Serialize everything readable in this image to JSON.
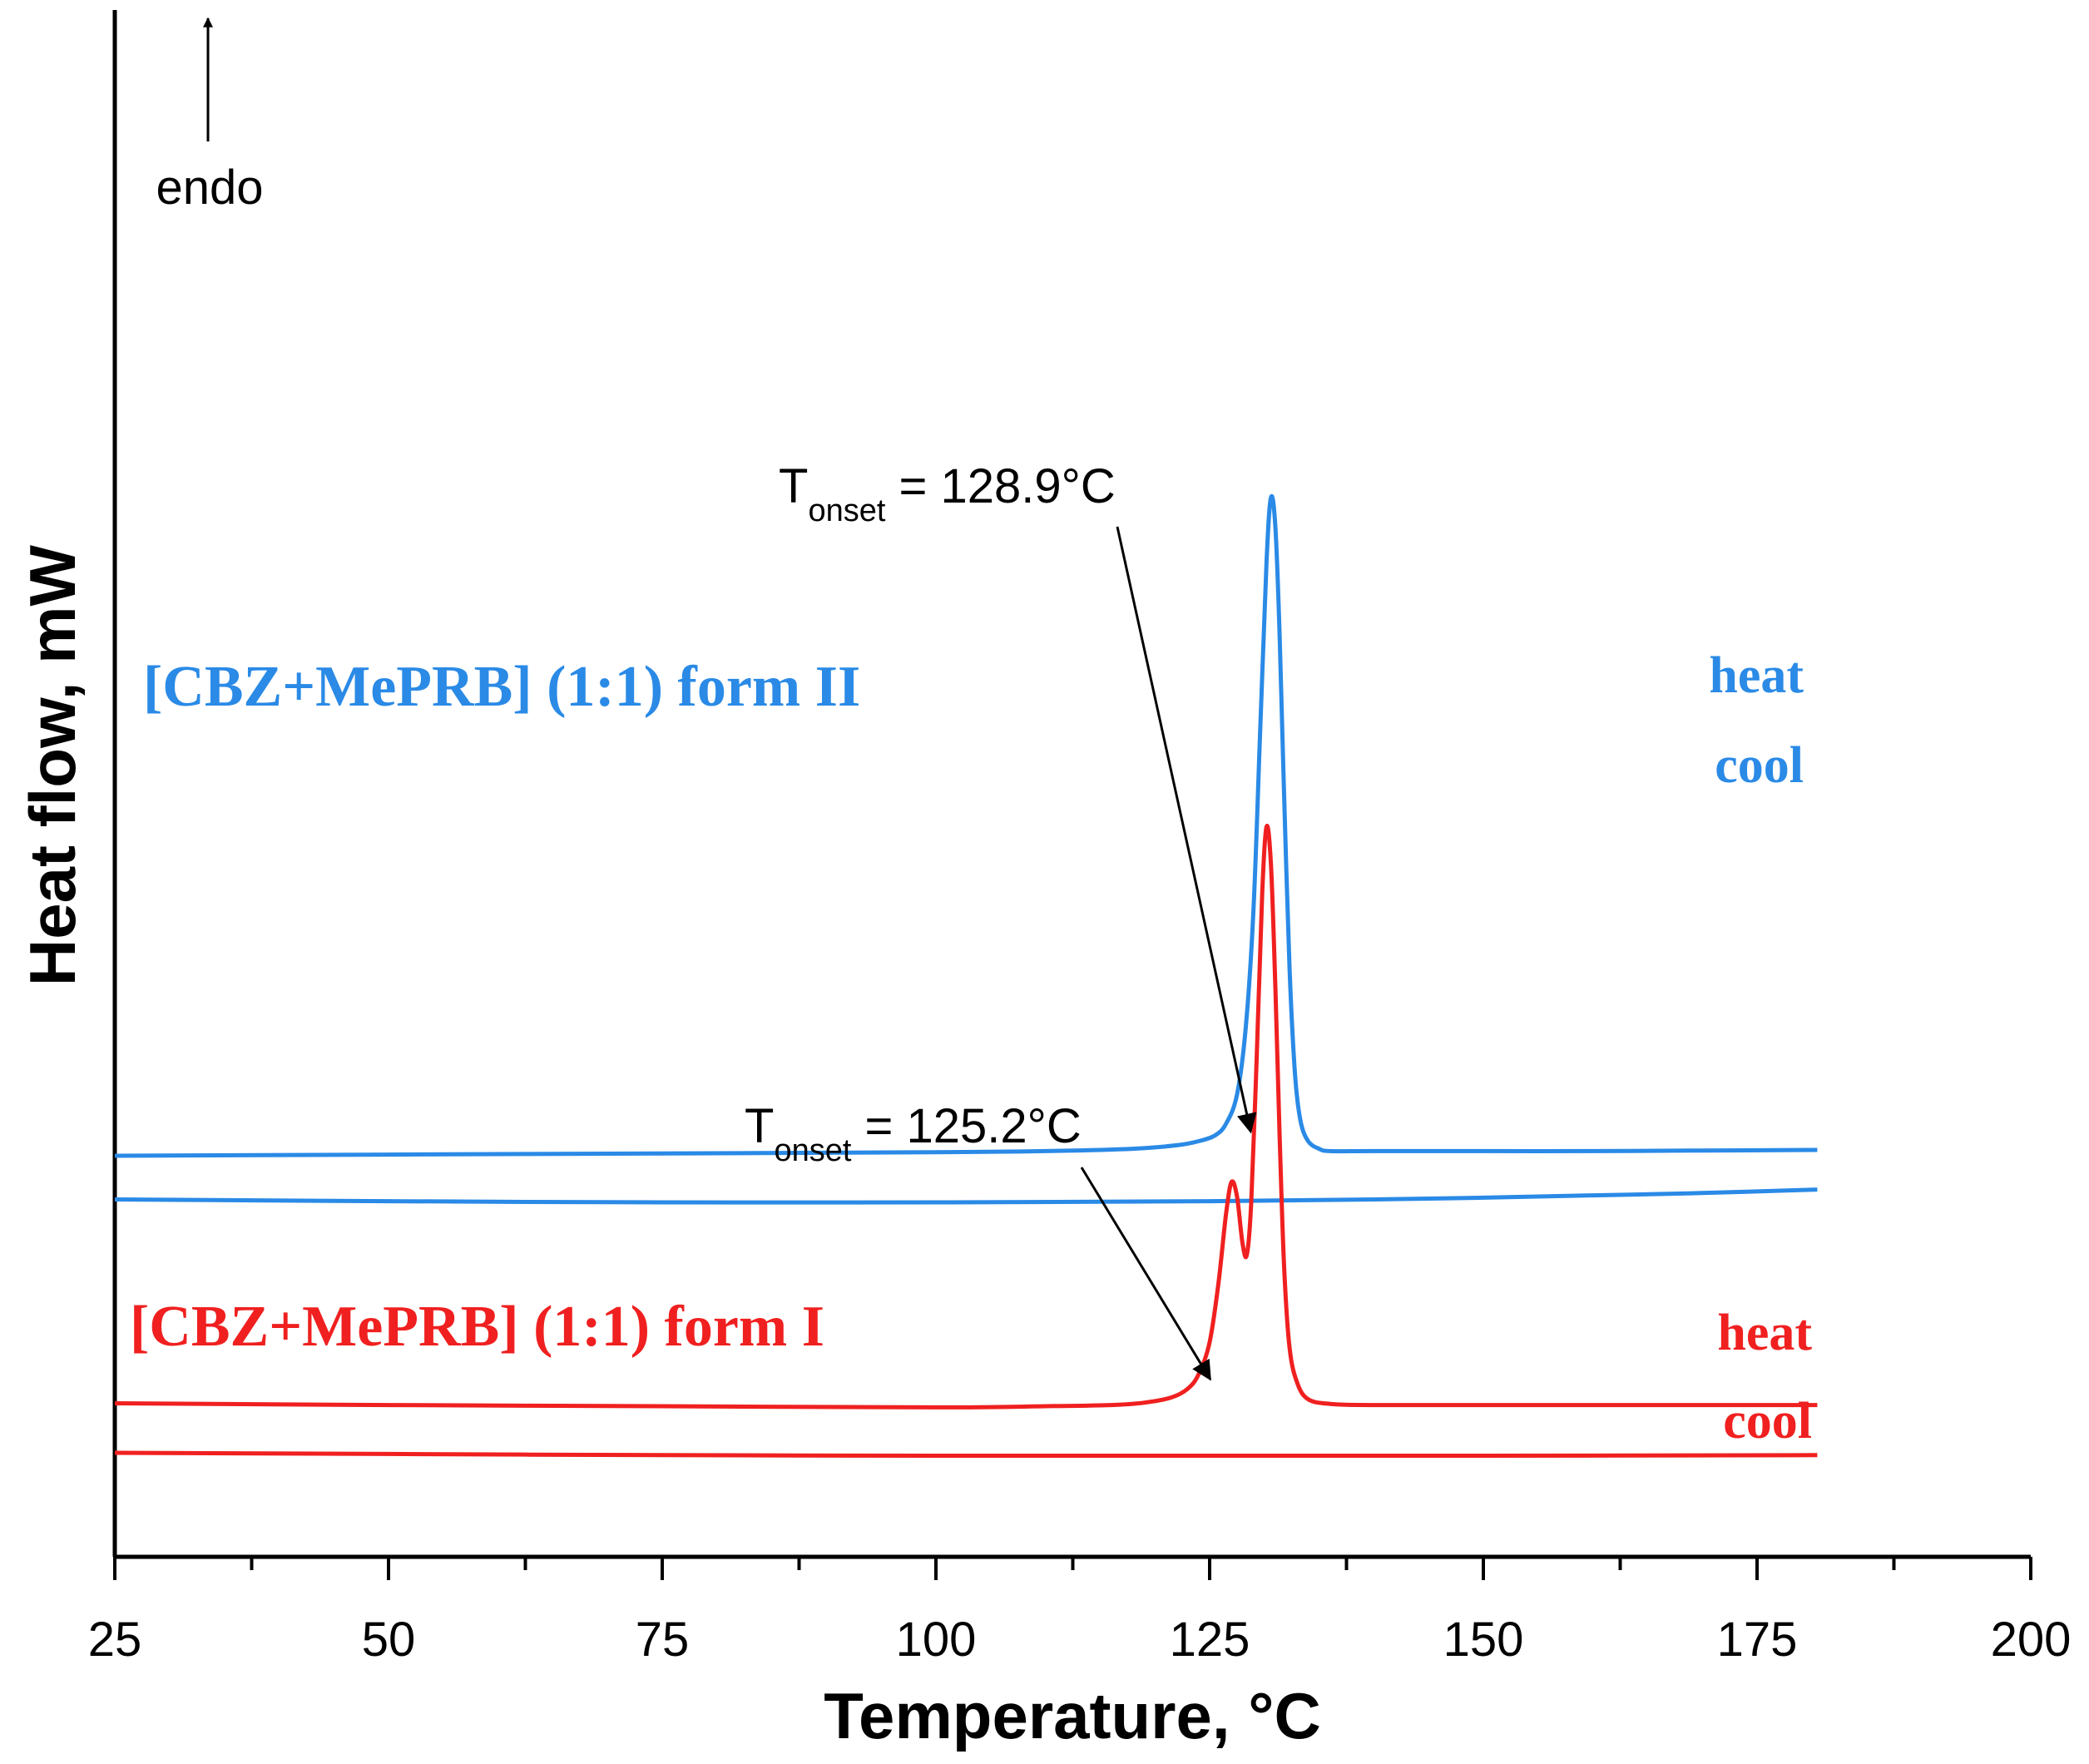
{
  "chart_data": {
    "type": "line",
    "title": "",
    "xlabel": "Temperature, °C",
    "ylabel": "Heat flow, mW",
    "xlim": [
      25,
      200
    ],
    "x_ticks": [
      "25",
      "50",
      "75",
      "100",
      "125",
      "150",
      "175",
      "200"
    ],
    "y_ticks": [],
    "grid": false,
    "direction_label": "endo",
    "colors": {
      "form_II": "#2a8ae6",
      "form_I": "#f02020"
    },
    "series": [
      {
        "name": "[CBZ+MePRB] (1:1) form II",
        "run": "heat",
        "color": "#2a8ae6",
        "x": [
          25,
          50,
          75,
          100,
          110,
          118,
          122,
          124,
          125.5,
          126.5,
          127.5,
          128.3,
          129,
          129.6,
          130.2,
          130.6,
          131,
          131.4,
          131.8,
          132.3,
          132.8,
          133.3,
          134,
          135,
          136,
          140,
          150,
          160,
          170,
          180.5
        ],
        "y": [
          5.3,
          5.32,
          5.34,
          5.36,
          5.38,
          5.42,
          5.48,
          5.55,
          5.65,
          5.85,
          6.35,
          7.5,
          9.5,
          12.5,
          15.5,
          16.6,
          16.1,
          14.2,
          11.5,
          8.5,
          6.7,
          5.9,
          5.55,
          5.42,
          5.38,
          5.38,
          5.38,
          5.38,
          5.39,
          5.4
        ]
      },
      {
        "name": "[CBZ+MePRB] (1:1) form II",
        "run": "cool",
        "color": "#2a8ae6",
        "x": [
          25,
          50,
          75,
          100,
          125,
          140,
          150,
          160,
          170,
          180.5
        ],
        "y": [
          4.55,
          4.52,
          4.5,
          4.5,
          4.52,
          4.55,
          4.58,
          4.62,
          4.66,
          4.72
        ]
      },
      {
        "name": "[CBZ+MePRB] (1:1) form I",
        "run": "heat",
        "color": "#f02020",
        "x": [
          25,
          50,
          75,
          100,
          110,
          116,
          119,
          121.5,
          123,
          124,
          125,
          125.8,
          126.5,
          127,
          127.5,
          128,
          128.4,
          128.8,
          129.3,
          129.8,
          130.2,
          130.6,
          131,
          131.4,
          131.8,
          132.3,
          133,
          134,
          136,
          140,
          150,
          160,
          170,
          180.5
        ],
        "y": [
          1.05,
          1.02,
          1.0,
          0.98,
          1.0,
          1.02,
          1.06,
          1.15,
          1.3,
          1.55,
          2.1,
          3.1,
          4.3,
          4.85,
          4.6,
          3.8,
          3.6,
          4.5,
          7.0,
          9.8,
          10.95,
          10.3,
          8.2,
          5.6,
          3.4,
          2.0,
          1.4,
          1.12,
          1.04,
          1.02,
          1.02,
          1.02,
          1.02,
          1.02
        ]
      },
      {
        "name": "[CBZ+MePRB] (1:1) form I",
        "run": "cool",
        "color": "#f02020",
        "x": [
          25,
          50,
          75,
          100,
          125,
          150,
          180.5
        ],
        "y": [
          0.2,
          0.18,
          0.16,
          0.15,
          0.15,
          0.15,
          0.16
        ]
      }
    ],
    "annotations": [
      {
        "text_main": "T",
        "text_sub": "onset",
        "text_value": " = 128.9°C",
        "arrow_to_x": 128.9,
        "arrow_to_y": 5.6
      },
      {
        "text_main": "T",
        "text_sub": "onset",
        "text_value": " = 125.2°C",
        "arrow_to_x": 125.2,
        "arrow_to_y": 1.35
      }
    ],
    "labels": {
      "form_II": "[CBZ+MePRB] (1:1) form II",
      "form_I": "[CBZ+MePRB] (1:1) form I",
      "heat": "heat",
      "cool": "cool"
    }
  }
}
